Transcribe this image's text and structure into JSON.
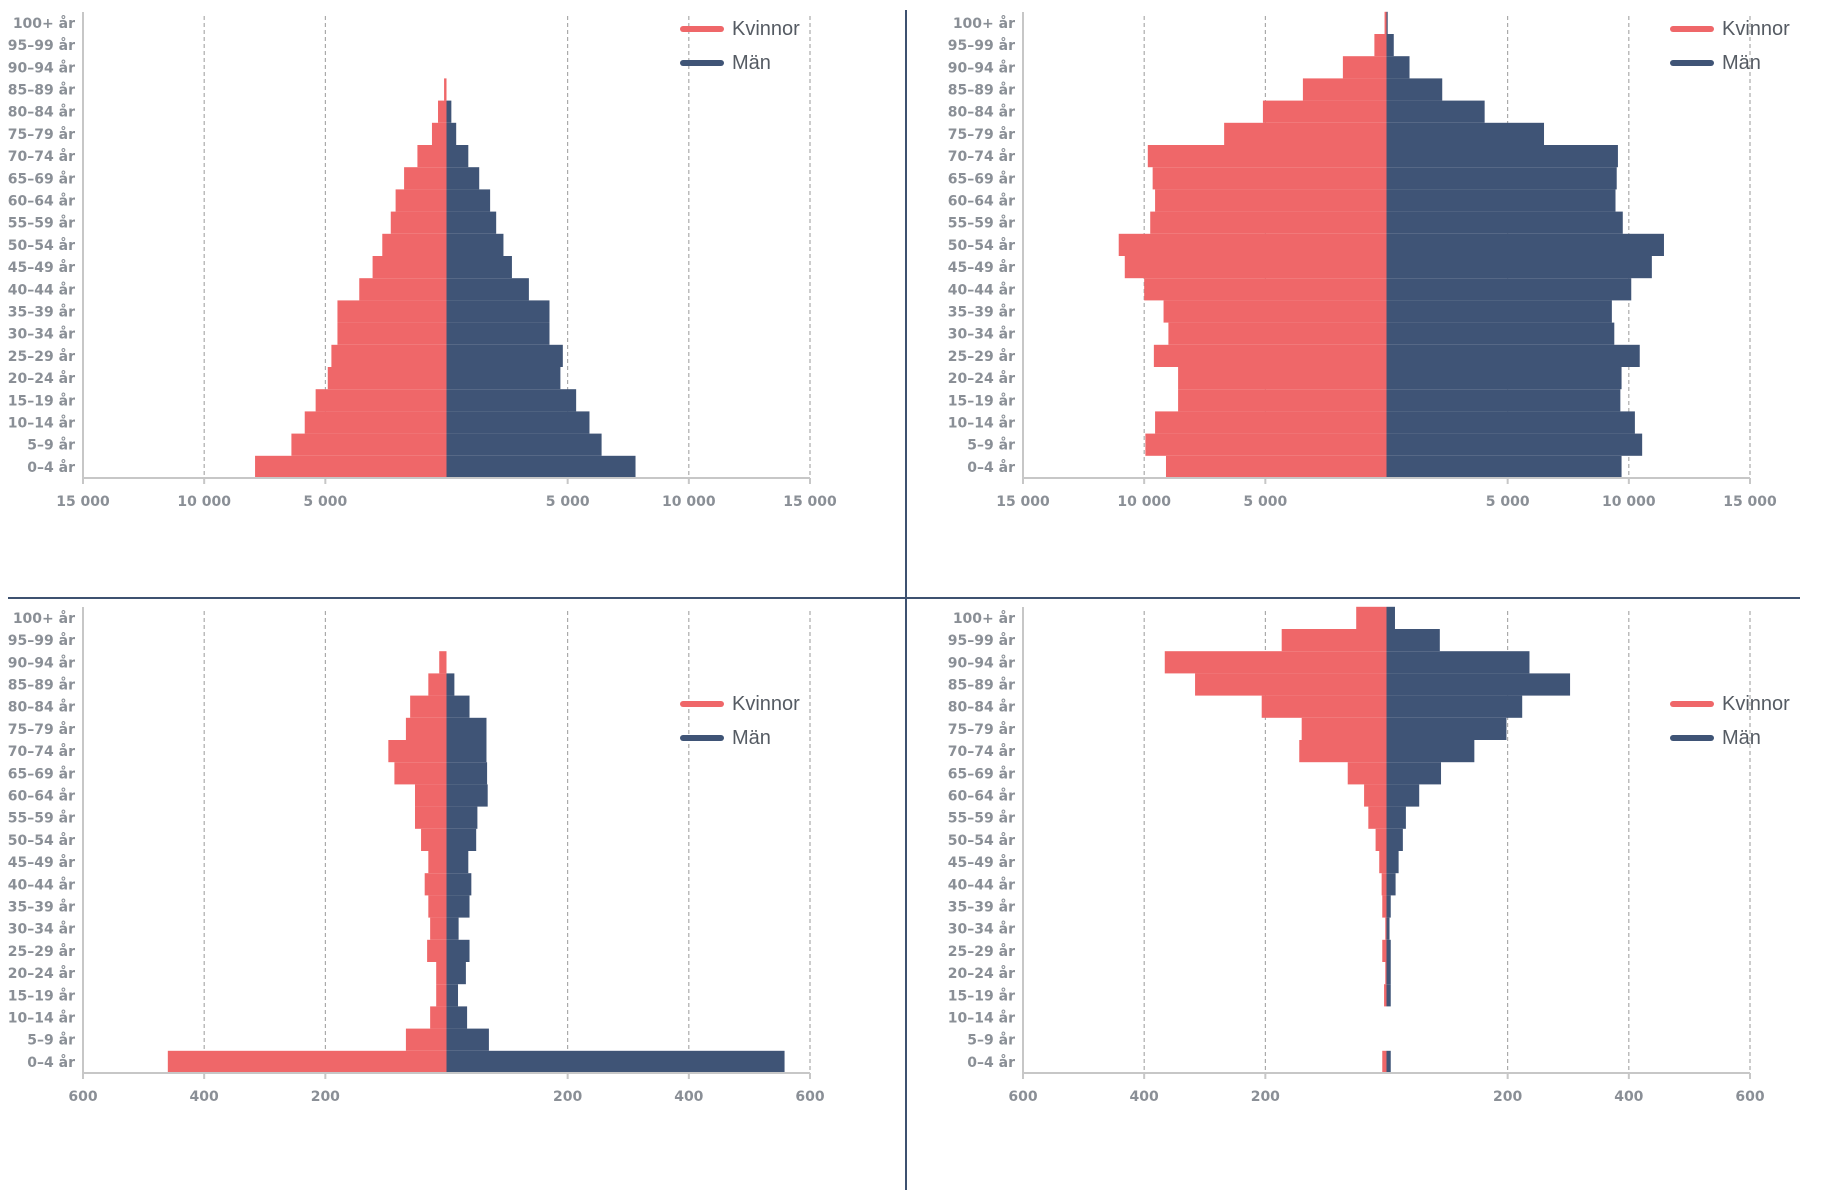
{
  "colors": {
    "women": "#ef6769",
    "men": "#3f5476",
    "grid": "#9a9a9a",
    "axis": "#c7c7c7",
    "divider": "#3d5170"
  },
  "chart_data": [
    {
      "type": "bar",
      "orientation": "horizontal-pyramid",
      "categories": [
        "0–4 år",
        "5–9 år",
        "10–14 år",
        "15–19 år",
        "20–24 år",
        "25–29 år",
        "30–34 år",
        "35–39 år",
        "40–44 år",
        "45–49 år",
        "50–54 år",
        "55–59 år",
        "60–64 år",
        "65–69 år",
        "70–74 år",
        "75–79 år",
        "80–84 år",
        "85–89 år",
        "90–94 år",
        "95–99 år",
        "100+ år"
      ],
      "xlim": [
        -15000,
        15000
      ],
      "ticks": [
        -15000,
        -10000,
        -5000,
        5000,
        10000,
        15000
      ],
      "tick_labels": [
        "15 000",
        "10 000",
        "5 000",
        "5 000",
        "10 000",
        "15 000"
      ],
      "legend": [
        "Kvinnor",
        "Män"
      ],
      "legend_position": "top-right",
      "grid": true,
      "series": [
        {
          "name": "Kvinnor",
          "values": [
            7900,
            6400,
            5850,
            5400,
            4900,
            4750,
            4500,
            4500,
            3600,
            3050,
            2650,
            2300,
            2100,
            1750,
            1200,
            600,
            350,
            100,
            0,
            0,
            0
          ]
        },
        {
          "name": "Män",
          "values": [
            7800,
            6400,
            5900,
            5350,
            4700,
            4800,
            4250,
            4250,
            3400,
            2700,
            2350,
            2050,
            1800,
            1350,
            900,
            400,
            200,
            0,
            0,
            0,
            0
          ]
        }
      ]
    },
    {
      "type": "bar",
      "orientation": "horizontal-pyramid",
      "categories": [
        "0–4 år",
        "5–9 år",
        "10–14 år",
        "15–19 år",
        "20–24 år",
        "25–29 år",
        "30–34 år",
        "35–39 år",
        "40–44 år",
        "45–49 år",
        "50–54 år",
        "55–59 år",
        "60–64 år",
        "65–69 år",
        "70–74 år",
        "75–79 år",
        "80–84 år",
        "85–89 år",
        "90–94 år",
        "95–99 år",
        "100+ år"
      ],
      "xlim": [
        -15000,
        15000
      ],
      "ticks": [
        -15000,
        -10000,
        -5000,
        5000,
        10000,
        15000
      ],
      "tick_labels": [
        "15 000",
        "10 000",
        "5 000",
        "5 000",
        "10 000",
        "15 000"
      ],
      "legend": [
        "Kvinnor",
        "Män"
      ],
      "legend_position": "top-right",
      "grid": true,
      "series": [
        {
          "name": "Kvinnor",
          "values": [
            9100,
            9950,
            9550,
            8600,
            8600,
            9600,
            9000,
            9200,
            10000,
            10800,
            11050,
            9750,
            9550,
            9650,
            9850,
            6700,
            5100,
            3450,
            1800,
            500,
            80
          ]
        },
        {
          "name": "Män",
          "values": [
            9700,
            10550,
            10250,
            9650,
            9700,
            10450,
            9400,
            9300,
            10100,
            10950,
            11450,
            9750,
            9450,
            9500,
            9550,
            6500,
            4050,
            2300,
            950,
            300,
            50
          ]
        }
      ]
    },
    {
      "type": "bar",
      "orientation": "horizontal-pyramid",
      "categories": [
        "0–4 år",
        "5–9 år",
        "10–14 år",
        "15–19 år",
        "20–24 år",
        "25–29 år",
        "30–34 år",
        "35–39 år",
        "40–44 år",
        "45–49 år",
        "50–54 år",
        "55–59 år",
        "60–64 år",
        "65–69 år",
        "70–74 år",
        "75–79 år",
        "80–84 år",
        "85–89 år",
        "90–94 år",
        "95–99 år",
        "100+ år"
      ],
      "xlim": [
        -600,
        600
      ],
      "ticks": [
        -600,
        -400,
        -200,
        200,
        400,
        600
      ],
      "tick_labels": [
        "600",
        "400",
        "200",
        "200",
        "400",
        "600"
      ],
      "legend": [
        "Kvinnor",
        "Män"
      ],
      "legend_position": "top-right",
      "grid": true,
      "series": [
        {
          "name": "Kvinnor",
          "values": [
            460,
            67,
            27,
            17,
            17,
            32,
            27,
            30,
            36,
            30,
            42,
            52,
            52,
            86,
            96,
            67,
            60,
            30,
            12,
            0,
            0
          ]
        },
        {
          "name": "Män",
          "values": [
            558,
            70,
            34,
            19,
            32,
            38,
            20,
            38,
            41,
            36,
            49,
            51,
            68,
            67,
            66,
            66,
            38,
            13,
            0,
            0,
            0
          ]
        }
      ]
    },
    {
      "type": "bar",
      "orientation": "horizontal-pyramid",
      "categories": [
        "0–4 år",
        "5–9 år",
        "10–14 år",
        "15–19 år",
        "20–24 år",
        "25–29 år",
        "30–34 år",
        "35–39 år",
        "40–44 år",
        "45–49 år",
        "50–54 år",
        "55–59 år",
        "60–64 år",
        "65–69 år",
        "70–74 år",
        "75–79 år",
        "80–84 år",
        "85–89 år",
        "90–94 år",
        "95–99 år",
        "100+ år"
      ],
      "xlim": [
        -600,
        600
      ],
      "ticks": [
        -600,
        -400,
        -200,
        200,
        400,
        600
      ],
      "tick_labels": [
        "600",
        "400",
        "200",
        "200",
        "400",
        "600"
      ],
      "legend": [
        "Kvinnor",
        "Män"
      ],
      "legend_position": "top-right",
      "grid": true,
      "series": [
        {
          "name": "Kvinnor",
          "values": [
            7,
            0,
            0,
            4,
            2,
            7,
            2,
            7,
            8,
            12,
            18,
            30,
            37,
            64,
            144,
            140,
            206,
            316,
            366,
            173,
            50
          ]
        },
        {
          "name": "Män",
          "values": [
            7,
            0,
            0,
            7,
            7,
            7,
            5,
            7,
            15,
            20,
            27,
            32,
            54,
            90,
            145,
            198,
            224,
            303,
            236,
            88,
            14
          ]
        }
      ]
    }
  ]
}
